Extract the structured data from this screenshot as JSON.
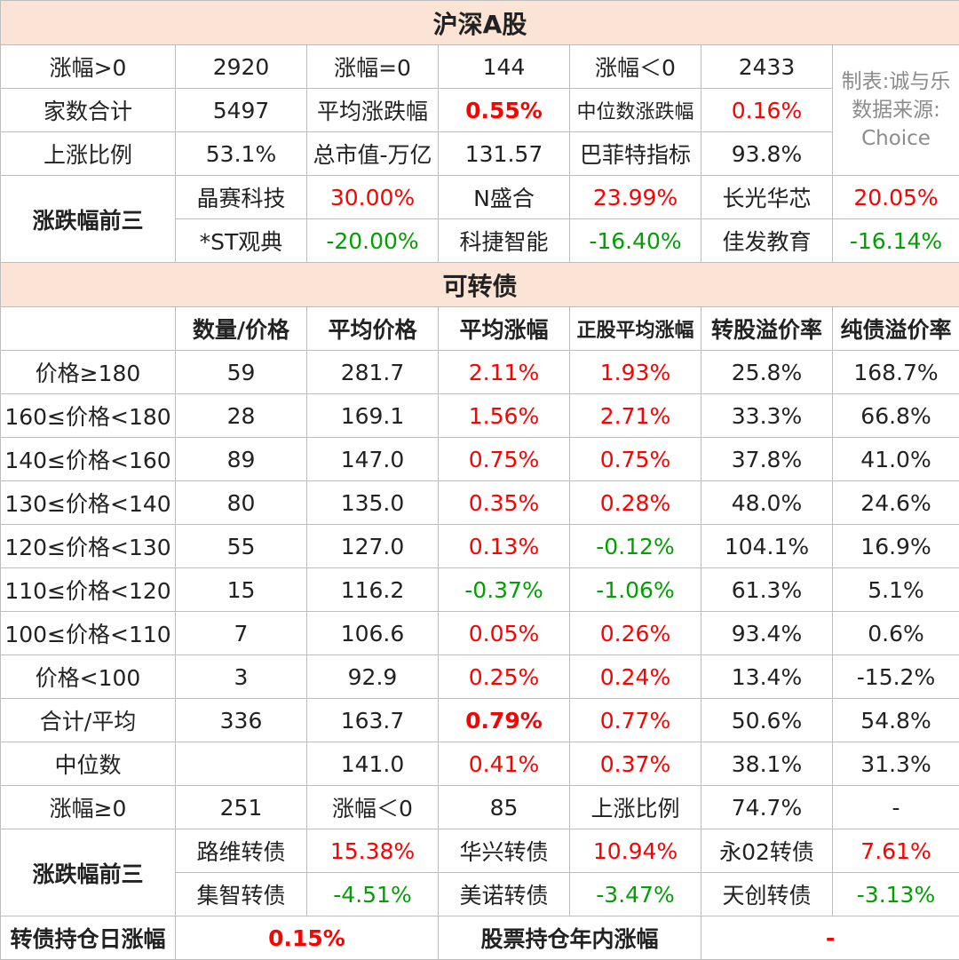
{
  "a_share": {
    "title": "沪深A股",
    "rows": [
      [
        "涨幅>0",
        "2920",
        "涨幅=0",
        "144",
        "涨幅＜0",
        "2433"
      ],
      [
        "家数合计",
        "5497",
        "平均涨跌幅",
        "0.55%",
        "中位数涨跌幅",
        "0.16%"
      ],
      [
        "上涨比例",
        "53.1%",
        "总市值-万亿",
        "131.57",
        "巴菲特指标",
        "93.8%"
      ]
    ],
    "note": [
      "制表:诚与乐",
      "数据来源:",
      "Choice"
    ],
    "top3_label": "涨跌幅前三",
    "top_gainers": [
      [
        "晶赛科技",
        "30.00%"
      ],
      [
        "N盛合",
        "23.99%"
      ],
      [
        "长光华芯",
        "20.05%"
      ]
    ],
    "top_losers": [
      [
        "*ST观典",
        "-20.00%"
      ],
      [
        "科捷智能",
        "-16.40%"
      ],
      [
        "佳发教育",
        "-16.14%"
      ]
    ]
  },
  "cb": {
    "title": "可转债",
    "headers": [
      "",
      "数量/价格",
      "平均价格",
      "平均涨幅",
      "正股平均涨幅",
      "转股溢价率",
      "纯债溢价率"
    ],
    "rows": [
      [
        "价格≥180",
        "59",
        "281.7",
        "2.11%",
        "1.93%",
        "25.8%",
        "168.7%"
      ],
      [
        "160≤价格<180",
        "28",
        "169.1",
        "1.56%",
        "2.71%",
        "33.3%",
        "66.8%"
      ],
      [
        "140≤价格<160",
        "89",
        "147.0",
        "0.75%",
        "0.75%",
        "37.8%",
        "41.0%"
      ],
      [
        "130≤价格<140",
        "80",
        "135.0",
        "0.35%",
        "0.28%",
        "48.0%",
        "24.6%"
      ],
      [
        "120≤价格<130",
        "55",
        "127.0",
        "0.13%",
        "-0.12%",
        "104.1%",
        "16.9%"
      ],
      [
        "110≤价格<120",
        "15",
        "116.2",
        "-0.37%",
        "-1.06%",
        "61.3%",
        "5.1%"
      ],
      [
        "100≤价格<110",
        "7",
        "106.6",
        "0.05%",
        "0.26%",
        "93.4%",
        "0.6%"
      ],
      [
        "价格<100",
        "3",
        "92.9",
        "0.25%",
        "0.24%",
        "13.4%",
        "-15.2%"
      ],
      [
        "合计/平均",
        "336",
        "163.7",
        "0.79%",
        "0.77%",
        "50.6%",
        "54.8%"
      ],
      [
        "中位数",
        "",
        "141.0",
        "0.41%",
        "0.37%",
        "38.1%",
        "31.3%"
      ]
    ],
    "rise_row": [
      "涨幅≥0",
      "251",
      "涨幅＜0",
      "85",
      "上涨比例",
      "74.7%",
      "-"
    ],
    "top3_label": "涨跌幅前三",
    "top_gainers": [
      [
        "路维转债",
        "15.38%"
      ],
      [
        "华兴转债",
        "10.94%"
      ],
      [
        "永02转债",
        "7.61%"
      ]
    ],
    "top_losers": [
      [
        "集智转债",
        "-4.51%"
      ],
      [
        "美诺转债",
        "-3.47%"
      ],
      [
        "天创转债",
        "-3.13%"
      ]
    ]
  },
  "bottom": {
    "cb_label": "转债持仓日涨幅",
    "cb_value": "0.15%",
    "stock_label": "股票持仓年内涨幅",
    "stock_value": "-"
  },
  "colors": {
    "header_bg": "#fbe4d5",
    "positive": "#ff0000",
    "negative": "#00a000",
    "note": "#8c8c8c",
    "border": "#bdbdbd"
  }
}
